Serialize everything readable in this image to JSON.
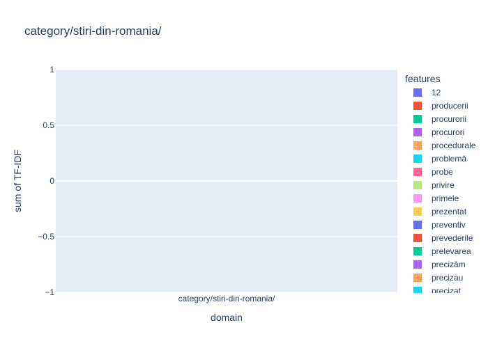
{
  "chart_data": {
    "type": "bar",
    "title": "category/stiri-din-romania/",
    "xlabel": "domain",
    "ylabel": "sum of TF-IDF",
    "categories": [
      "category/stiri-din-romania/"
    ],
    "ylim": [
      -1,
      1
    ],
    "yticks": [
      {
        "value": 1,
        "label": "1"
      },
      {
        "value": 0.5,
        "label": "0.5"
      },
      {
        "value": 0,
        "label": "0"
      },
      {
        "value": -0.5,
        "label": "−0.5"
      },
      {
        "value": -1,
        "label": "−1"
      }
    ],
    "grid": true,
    "legend_placement": "right",
    "legend_title": "features",
    "series": [
      {
        "name": "12",
        "color": "#636efa",
        "values": [
          0
        ]
      },
      {
        "name": "producerii",
        "color": "#EF553B",
        "values": [
          0
        ]
      },
      {
        "name": "procurorii",
        "color": "#00cc96",
        "values": [
          0
        ]
      },
      {
        "name": "procurori",
        "color": "#ab63fa",
        "values": [
          0
        ]
      },
      {
        "name": "procedurale",
        "color": "#FFA15A",
        "values": [
          0
        ]
      },
      {
        "name": "problemă",
        "color": "#19d3f3",
        "values": [
          0
        ]
      },
      {
        "name": "probe",
        "color": "#FF6692",
        "values": [
          0
        ]
      },
      {
        "name": "privire",
        "color": "#B6E880",
        "values": [
          0
        ]
      },
      {
        "name": "primele",
        "color": "#FF97FF",
        "values": [
          0
        ]
      },
      {
        "name": "prezentat",
        "color": "#FECB52",
        "values": [
          0
        ]
      },
      {
        "name": "preventiv",
        "color": "#636efa",
        "values": [
          0
        ]
      },
      {
        "name": "prevederile",
        "color": "#EF553B",
        "values": [
          0
        ]
      },
      {
        "name": "prelevarea",
        "color": "#00cc96",
        "values": [
          0
        ]
      },
      {
        "name": "precizăm",
        "color": "#ab63fa",
        "values": [
          0
        ]
      },
      {
        "name": "precizau",
        "color": "#FFA15A",
        "values": [
          0
        ]
      },
      {
        "name": "precizat",
        "color": "#19d3f3",
        "values": [
          0
        ]
      }
    ]
  }
}
